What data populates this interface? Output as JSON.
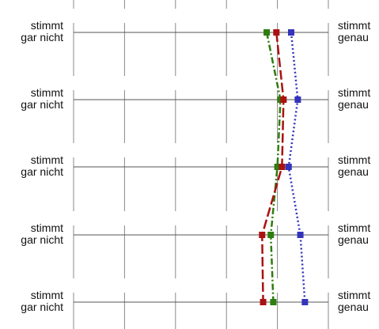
{
  "chart_data": {
    "type": "line",
    "orientation": "vertical-profile",
    "title": "",
    "xlabel": "",
    "ylabel": "",
    "left_label_line1": "stimmt",
    "left_label_line2": "gar nicht",
    "right_label_line1": "stimmt",
    "right_label_line2": "genau",
    "x_scale_columns": 5,
    "xlim": [
      1,
      6
    ],
    "items": [
      "1",
      "2",
      "3",
      "4",
      "5"
    ],
    "grid": true,
    "legend": "none",
    "series": [
      {
        "color": "#2e7d0e",
        "line_style": "dashdot",
        "values": [
          4.79,
          5.06,
          5.0,
          4.87,
          4.92
        ]
      },
      {
        "color": "#aa1111",
        "line_style": "dashed",
        "values": [
          4.98,
          5.12,
          5.09,
          4.7,
          4.72
        ]
      },
      {
        "color": "#3333bb",
        "line_style": "dotted",
        "values": [
          5.27,
          5.4,
          5.22,
          5.45,
          5.54
        ]
      }
    ]
  }
}
